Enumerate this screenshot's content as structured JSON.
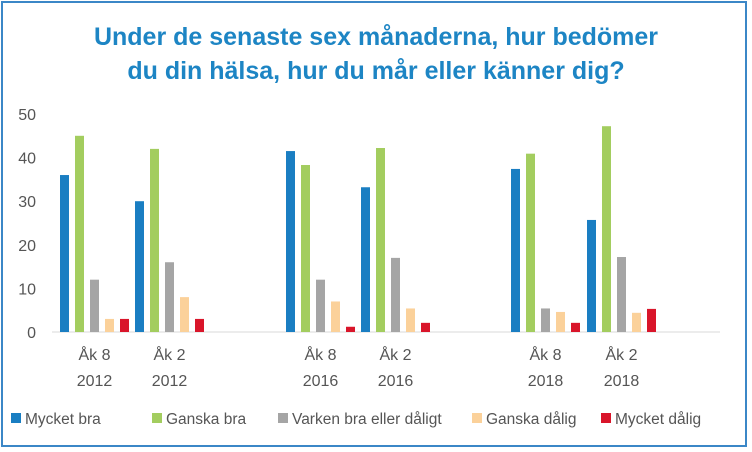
{
  "chart_data": {
    "type": "bar",
    "title_lines": [
      "Under de senaste sex månaderna, hur bedömer",
      "du din hälsa, hur du mår eller känner dig?"
    ],
    "categories": [
      {
        "line1": "Åk 8",
        "line2": "2012"
      },
      {
        "line1": "Åk 2",
        "line2": "2012"
      },
      {
        "line1": "Åk 8",
        "line2": "2016"
      },
      {
        "line1": "Åk 2",
        "line2": "2016"
      },
      {
        "line1": "Åk 8",
        "line2": "2018"
      },
      {
        "line1": "Åk 2",
        "line2": "2018"
      }
    ],
    "series": [
      {
        "name": "Mycket bra",
        "color": "#1a7ec2",
        "values": [
          36,
          30,
          41.5,
          33.2,
          37.4,
          25.7
        ]
      },
      {
        "name": "Ganska bra",
        "color": "#a3cd5f",
        "values": [
          45,
          42,
          38.3,
          42.2,
          40.9,
          47.2
        ]
      },
      {
        "name": "Varken bra eller dåligt",
        "color": "#a5a5a5",
        "values": [
          12,
          16,
          12,
          17,
          5.4,
          17.2
        ]
      },
      {
        "name": "Ganska dålig",
        "color": "#fbd19a",
        "values": [
          3,
          8,
          7,
          5.4,
          4.6,
          4.4
        ]
      },
      {
        "name": "Mycket dålig",
        "color": "#d9152a",
        "values": [
          3,
          3,
          1.2,
          2.1,
          2.1,
          5.3
        ]
      }
    ],
    "y_ticks": [
      "0",
      "10",
      "20",
      "30",
      "40",
      "50"
    ],
    "ylim": [
      0,
      50
    ],
    "grid": false,
    "legend_position": "bottom"
  }
}
